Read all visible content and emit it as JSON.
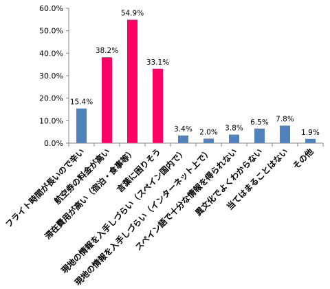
{
  "chart_data": {
    "type": "bar",
    "title": "",
    "xlabel": "",
    "ylabel": "",
    "ylim": [
      0,
      60
    ],
    "ytick_labels": [
      "0.0%",
      "10.0%",
      "20.0%",
      "30.0%",
      "40.0%",
      "50.0%",
      "60.0%"
    ],
    "grid": false,
    "legend": "none",
    "categories": [
      "フライト時間が長いので辛い",
      "航空券の料金が高い",
      "滞在費用が高い（宿泊・食事等）",
      "言葉に困りそう",
      "現地の情報を入手しづらい（スペイン国内で）",
      "現地の情報を入手しづらい（インターネット上で）",
      "スペイン語で十分な情報を得られない",
      "異文化でよくわからない",
      "当てはまることはない",
      "その他"
    ],
    "values": [
      15.4,
      38.2,
      54.9,
      33.1,
      3.4,
      2.0,
      3.8,
      6.5,
      7.8,
      1.9
    ],
    "data_labels": [
      "15.4%",
      "38.2%",
      "54.9%",
      "33.1%",
      "3.4%",
      "2.0%",
      "3.8%",
      "6.5%",
      "7.8%",
      "1.9%"
    ],
    "highlighted": [
      false,
      true,
      true,
      true,
      false,
      false,
      false,
      false,
      false,
      false
    ],
    "colors": {
      "default": "#4F81BD",
      "highlight": "#FF0066",
      "axis": "#868686"
    }
  }
}
